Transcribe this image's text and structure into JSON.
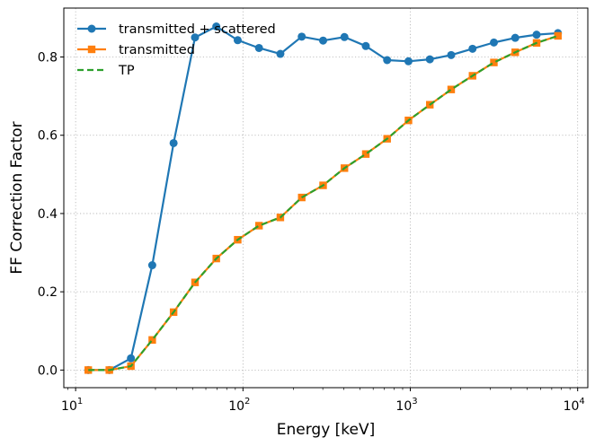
{
  "chart_data": {
    "type": "line",
    "title": "",
    "xlabel": "Energy [keV]",
    "ylabel": "FF Correction Factor",
    "xscale": "log",
    "xlim": [
      8.5,
      11500
    ],
    "ylim": [
      -0.045,
      0.925
    ],
    "x_ticks": [
      {
        "value": 10,
        "base": "10",
        "exp": "1"
      },
      {
        "value": 100,
        "base": "10",
        "exp": "2"
      },
      {
        "value": 1000,
        "base": "10",
        "exp": "3"
      },
      {
        "value": 10000,
        "base": "10",
        "exp": "4"
      }
    ],
    "y_ticks": [
      "0.0",
      "0.2",
      "0.4",
      "0.6",
      "0.8"
    ],
    "grid": true,
    "legend_position": "upper-left",
    "x": [
      11.9,
      15.9,
      21.4,
      28.7,
      38.5,
      51.7,
      69.3,
      93.0,
      124.7,
      167.3,
      224.5,
      301.2,
      404.0,
      542.0,
      727.0,
      975.0,
      1308,
      1755,
      2354,
      3158,
      4236,
      5683,
      7623
    ],
    "series": [
      {
        "name": "transmitted + scattered",
        "color": "#1f77b4",
        "marker": "circle",
        "linestyle": "solid",
        "values": [
          0.0,
          0.0,
          0.03,
          0.268,
          0.58,
          0.85,
          0.878,
          0.843,
          0.823,
          0.808,
          0.852,
          0.842,
          0.851,
          0.828,
          0.792,
          0.789,
          0.794,
          0.805,
          0.821,
          0.837,
          0.849,
          0.857,
          0.861
        ]
      },
      {
        "name": "transmitted",
        "color": "#ff7f0e",
        "marker": "square",
        "linestyle": "solid",
        "values": [
          0.0,
          0.0,
          0.01,
          0.077,
          0.148,
          0.224,
          0.285,
          0.333,
          0.369,
          0.39,
          0.441,
          0.472,
          0.516,
          0.552,
          0.591,
          0.638,
          0.678,
          0.717,
          0.752,
          0.786,
          0.812,
          0.836,
          0.854
        ]
      },
      {
        "name": "TP",
        "color": "#2ca02c",
        "marker": "none",
        "linestyle": "dashed",
        "values": [
          0.0,
          0.0,
          0.01,
          0.077,
          0.148,
          0.224,
          0.285,
          0.333,
          0.369,
          0.39,
          0.441,
          0.472,
          0.516,
          0.552,
          0.591,
          0.638,
          0.678,
          0.717,
          0.752,
          0.786,
          0.812,
          0.836,
          0.854
        ]
      }
    ]
  }
}
